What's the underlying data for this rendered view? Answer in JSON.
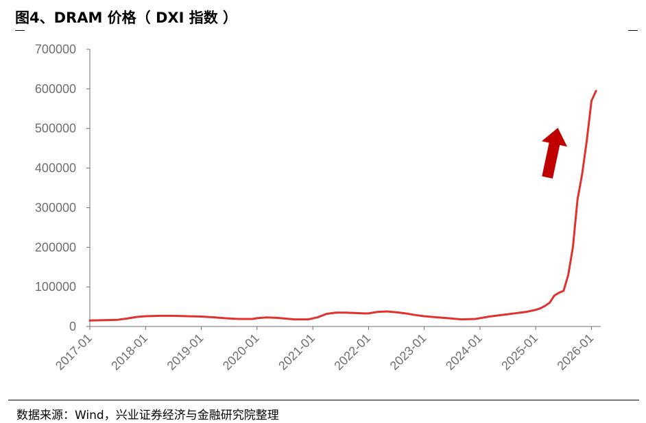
{
  "header": {
    "title": "图4、DRAM 价格（ DXI 指数 ）"
  },
  "footer": {
    "source": "数据来源：Wind，兴业证券经济与金融研究院整理"
  },
  "colors": {
    "series": "#e0312d",
    "arrow": "#c00000",
    "axis": "#6e6e6e"
  },
  "chart_data": {
    "type": "line",
    "title": "图4、DRAM 价格（ DXI 指数 ）",
    "xlabel": "",
    "ylabel": "",
    "ylim": [
      0,
      700000
    ],
    "yticks": [
      0,
      100000,
      200000,
      300000,
      400000,
      500000,
      600000,
      700000
    ],
    "ytick_labels": [
      "0",
      "100000",
      "200000",
      "300000",
      "400000",
      "500000",
      "600000",
      "700000"
    ],
    "xlim": [
      "2017-01",
      "2026-03"
    ],
    "xticks": [
      "2017-01",
      "2018-01",
      "2019-01",
      "2020-01",
      "2021-01",
      "2022-01",
      "2023-01",
      "2024-01",
      "2025-01",
      "2026-01"
    ],
    "grid": false,
    "legend": "none",
    "annotations": [
      {
        "type": "arrow",
        "direction": "up"
      }
    ],
    "series": [
      {
        "values": [
          [
            "2017-01",
            15000
          ],
          [
            "2017-04",
            16000
          ],
          [
            "2017-07",
            17000
          ],
          [
            "2017-09",
            20000
          ],
          [
            "2017-11",
            24000
          ],
          [
            "2018-01",
            26000
          ],
          [
            "2018-04",
            27000
          ],
          [
            "2018-07",
            27000
          ],
          [
            "2018-10",
            26000
          ],
          [
            "2019-01",
            25000
          ],
          [
            "2019-04",
            23000
          ],
          [
            "2019-06",
            21000
          ],
          [
            "2019-09",
            19000
          ],
          [
            "2019-12",
            19000
          ],
          [
            "2020-01",
            21000
          ],
          [
            "2020-03",
            23000
          ],
          [
            "2020-05",
            22000
          ],
          [
            "2020-07",
            20000
          ],
          [
            "2020-09",
            18000
          ],
          [
            "2020-12",
            18000
          ],
          [
            "2021-02",
            23000
          ],
          [
            "2021-04",
            32000
          ],
          [
            "2021-06",
            35000
          ],
          [
            "2021-08",
            35000
          ],
          [
            "2021-10",
            34000
          ],
          [
            "2021-12",
            33000
          ],
          [
            "2022-01",
            33000
          ],
          [
            "2022-03",
            37000
          ],
          [
            "2022-05",
            38000
          ],
          [
            "2022-07",
            36000
          ],
          [
            "2022-09",
            33000
          ],
          [
            "2022-11",
            29000
          ],
          [
            "2023-01",
            26000
          ],
          [
            "2023-04",
            23000
          ],
          [
            "2023-07",
            20000
          ],
          [
            "2023-09",
            18000
          ],
          [
            "2023-12",
            19000
          ],
          [
            "2024-01",
            21000
          ],
          [
            "2024-03",
            25000
          ],
          [
            "2024-05",
            28000
          ],
          [
            "2024-07",
            31000
          ],
          [
            "2024-09",
            34000
          ],
          [
            "2024-11",
            37000
          ],
          [
            "2025-01",
            42000
          ],
          [
            "2025-02",
            46000
          ],
          [
            "2025-03",
            52000
          ],
          [
            "2025-04",
            60000
          ],
          [
            "2025-05",
            78000
          ],
          [
            "2025-06",
            85000
          ],
          [
            "2025-07",
            90000
          ],
          [
            "2025-08",
            130000
          ],
          [
            "2025-09",
            200000
          ],
          [
            "2025-10",
            320000
          ],
          [
            "2025-11",
            385000
          ],
          [
            "2025-12",
            470000
          ],
          [
            "2026-01",
            570000
          ],
          [
            "2026-02",
            595000
          ]
        ]
      }
    ]
  }
}
